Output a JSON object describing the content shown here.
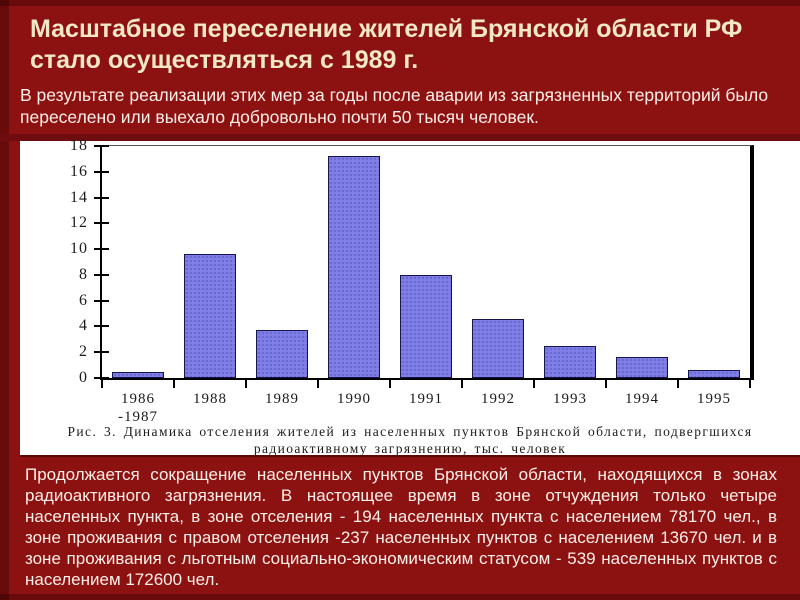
{
  "header": {
    "title": "Масштабное переселение жителей Брянской области РФ стало осуществляться с 1989 г."
  },
  "intro": {
    "text": "В результате реализации этих мер за годы после аварии из загрязненных территорий было переселено или выехало добровольно почти 50 тысяч человек."
  },
  "chart_data": {
    "type": "bar",
    "categories": [
      "1986\n-1987",
      "1988",
      "1989",
      "1990",
      "1991",
      "1992",
      "1993",
      "1994",
      "1995"
    ],
    "values": [
      0.5,
      9.6,
      3.7,
      17.2,
      8.0,
      4.6,
      2.5,
      1.6,
      0.6
    ],
    "title": "",
    "xlabel": "",
    "ylabel": "",
    "ylim": [
      0,
      18
    ],
    "yticks": [
      0,
      2,
      4,
      6,
      8,
      10,
      12,
      14,
      16,
      18
    ],
    "grid": false,
    "legend": false,
    "caption": "Рис. 3. Динамика отселения жителей из населенных пунктов Брянской области, подвергшихся радиоактивному загрязнению, тыс. человек"
  },
  "footer": {
    "text": "Продолжается сокращение населенных пунктов Брянской области, находящихся в зонах радиоактивного загрязнения. В настоящее время в зоне отчуждения только четыре населенных пункта, в зоне отселения - 194 населенных пункта с населением 78170 чел., в зоне проживания с правом отселения -237 населенных пунктов с населением 13670 чел. и в зоне проживания с льготным социально-экономическим статусом - 539 населенных пунктов с населением 172600 чел."
  },
  "colors": {
    "background": "#8C1212",
    "separator": "#6E0C10",
    "title_text": "#F2E8C6",
    "body_text": "#FFEFE8",
    "panel_bg": "#FFFFFF",
    "bar_fill": "#7E7EE6",
    "bar_border": "#14144A",
    "axis": "#000000",
    "caption_text": "#1C1C1C"
  }
}
